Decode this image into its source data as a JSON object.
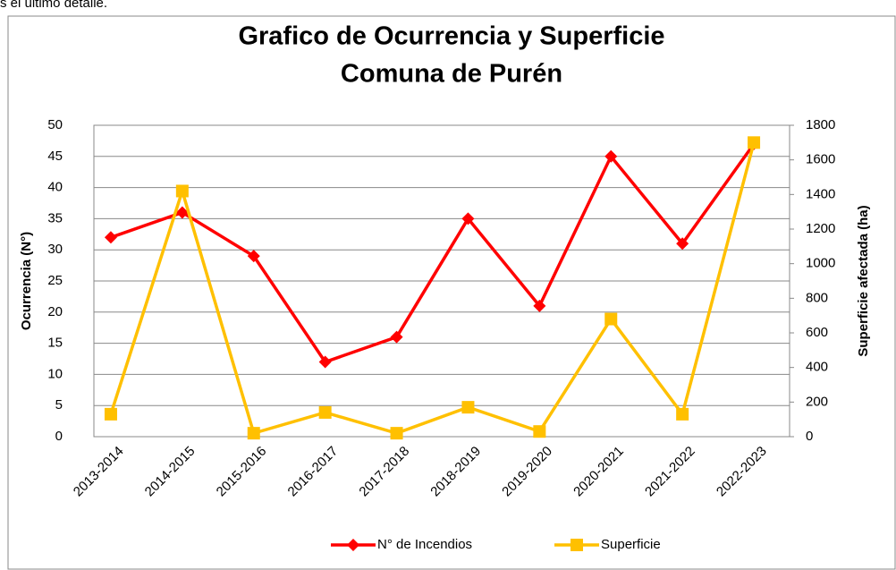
{
  "page_text": "s el último detalle.",
  "chart_data": {
    "type": "line",
    "title": [
      "Grafico de Ocurrencia y Superficie",
      "Comuna de Purén"
    ],
    "y_label": "Ocurrencia (N°)",
    "y2_label": "Superficie afectada (ha)",
    "categories": [
      "2013-2014",
      "2014-2015",
      "2015-2016",
      "2016-2017",
      "2017-2018",
      "2018-2019",
      "2019-2020",
      "2020-2021",
      "2021-2022",
      "2022-2023"
    ],
    "series": [
      {
        "name": "N° de Incendios",
        "color": "#ff0000",
        "marker": "diamond",
        "values": [
          32,
          36,
          29,
          12,
          16,
          35,
          21,
          45,
          31,
          47
        ]
      },
      {
        "name": "Superficie",
        "color": "#ffc000",
        "marker": "square",
        "axis": "y2",
        "values": [
          130,
          1420,
          20,
          140,
          20,
          170,
          30,
          680,
          130,
          1700
        ]
      }
    ],
    "ylim": [
      0,
      50
    ],
    "yticks": [
      0,
      5,
      10,
      15,
      20,
      25,
      30,
      35,
      40,
      45,
      50
    ],
    "y2lim": [
      0,
      1800
    ],
    "y2ticks": [
      0,
      200,
      400,
      600,
      800,
      1000,
      1200,
      1400,
      1600,
      1800
    ],
    "grid": true,
    "legend": "bottom"
  }
}
